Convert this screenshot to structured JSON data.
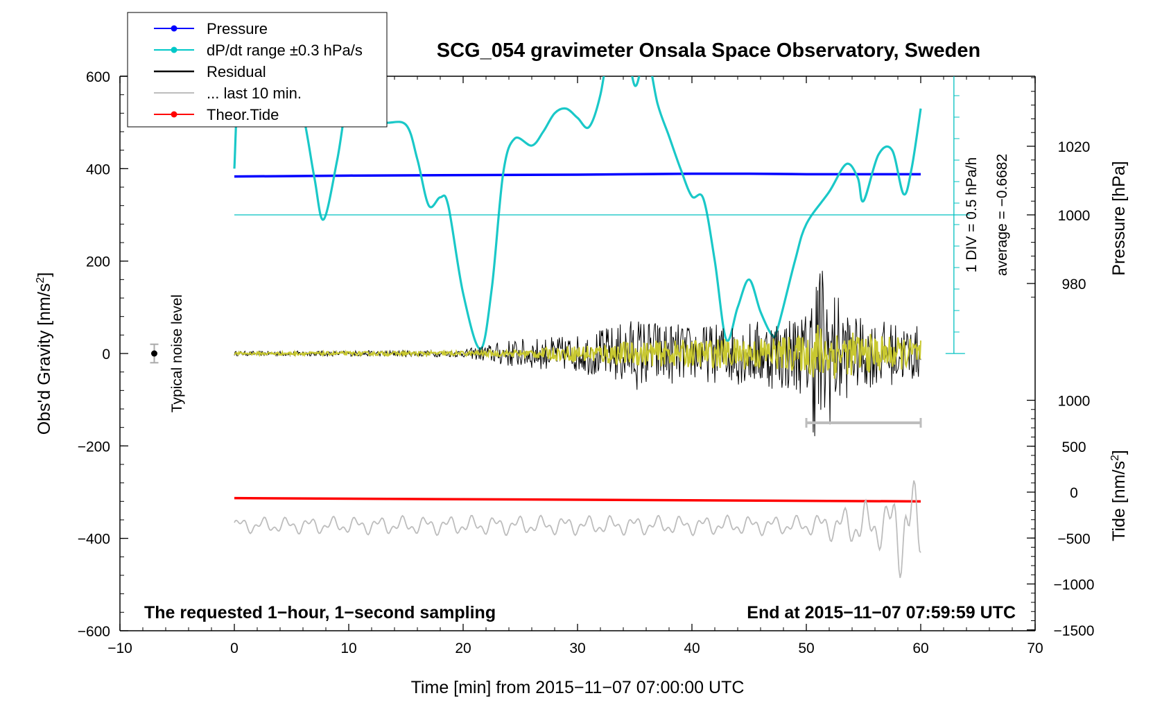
{
  "chart_data": {
    "type": "line",
    "title": "SCG_054 gravimeter Onsala Space Observatory, Sweden",
    "xlabel": "Time [min] from 2015−11−07 07:00:00 UTC",
    "ylabel_left": "Obs'd Gravity [nm/s",
    "ylabel_left_sup": "2",
    "ylabel_left_end": "]",
    "ylabel_right_pressure": "Pressure [hPa]",
    "ylabel_right_tide": "Tide [nm/s",
    "ylabel_right_tide_sup": "2",
    "ylabel_right_tide_end": "]",
    "x_ticks": [
      -10,
      0,
      10,
      20,
      30,
      40,
      50,
      60,
      70
    ],
    "x_tick_labels": [
      "−10",
      "0",
      "10",
      "20",
      "30",
      "40",
      "50",
      "60",
      "70"
    ],
    "xlim": [
      -10,
      70
    ],
    "ylim": [
      -600,
      600
    ],
    "y_tick_labels": [
      "600",
      "400",
      "200",
      "0",
      "−200",
      "−400",
      "−600"
    ],
    "pressure_ticks": [
      980,
      1000,
      1020
    ],
    "pressure_tick_labels": [
      "980",
      "1000",
      "1020"
    ],
    "tide_ticks": [
      1000,
      500,
      0,
      -500,
      -1000,
      -1500
    ],
    "tide_tick_labels": [
      "1000",
      "500",
      "0",
      "−500",
      "−1000",
      "−1500"
    ],
    "legend": {
      "position": "top-left",
      "entries": [
        {
          "name": "Pressure",
          "color": "#0000ff",
          "marker": true
        },
        {
          "name": "dP/dt range ±0.3 hPa/s",
          "color": "#00c8c8",
          "marker": true
        },
        {
          "name": "Residual",
          "color": "#000000",
          "marker": false
        },
        {
          "name": "... last 10 min.",
          "color": "#bdbdbd",
          "marker": false
        },
        {
          "name": "Theor.Tide",
          "color": "#ff0000",
          "marker": true
        }
      ]
    },
    "annotations": {
      "bottom_left": "The requested 1−hour, 1−second sampling",
      "bottom_right": "End at 2015−11−07 07:59:59 UTC",
      "div_label": "1 DIV = 0.5 hPa/h",
      "average_label": "average = −0.6682",
      "noise_label": "Typical noise level"
    },
    "noise_marker": {
      "x": -7,
      "y": 0,
      "err": 20
    },
    "last10_bar": {
      "x_start": 50,
      "x_end": 60,
      "y": -150
    },
    "series": [
      {
        "name": "Pressure",
        "color": "#0000ff",
        "x": [
          0,
          10,
          20,
          30,
          40,
          45,
          50,
          55,
          60
        ],
        "values": [
          383,
          385,
          386,
          387,
          389,
          389,
          388,
          388,
          388
        ]
      },
      {
        "name": "dP/dt range ±0.3 hPa/s",
        "color": "#00c8c8",
        "x": [
          0,
          0.5,
          2,
          4,
          6,
          7,
          7.8,
          9,
          10,
          11,
          13,
          15,
          16,
          17,
          18,
          18.7,
          20,
          21.5,
          22.5,
          23.5,
          24.5,
          26,
          27,
          28,
          29,
          30,
          31,
          32,
          33,
          34,
          35,
          36,
          37,
          38,
          39,
          40,
          41,
          42,
          43,
          44,
          45,
          46,
          47,
          47.5,
          49,
          50,
          52,
          53.5,
          54.5,
          55,
          56.3,
          57.5,
          58.5,
          59.2,
          60
        ],
        "values": [
          400,
          620,
          760,
          740,
          520,
          380,
          290,
          420,
          560,
          520,
          500,
          495,
          420,
          320,
          338,
          320,
          130,
          10,
          140,
          390,
          465,
          450,
          480,
          520,
          530,
          510,
          490,
          560,
          700,
          720,
          580,
          650,
          540,
          470,
          400,
          340,
          335,
          200,
          30,
          100,
          160,
          90,
          40,
          55,
          200,
          280,
          350,
          410,
          380,
          330,
          430,
          440,
          345,
          400,
          530
        ]
      },
      {
        "name": "Residual",
        "color": "#000000",
        "x_range": [
          0,
          60
        ],
        "envelope": [
          [
            0,
            5
          ],
          [
            10,
            6
          ],
          [
            20,
            8
          ],
          [
            24,
            30
          ],
          [
            30,
            40
          ],
          [
            33,
            60
          ],
          [
            35,
            80
          ],
          [
            40,
            60
          ],
          [
            45,
            70
          ],
          [
            50,
            90
          ],
          [
            51,
            230
          ],
          [
            52,
            160
          ],
          [
            54,
            80
          ],
          [
            60,
            60
          ]
        ]
      },
      {
        "name": "Residual (yellow fit)",
        "color": "#c8c828",
        "x_range": [
          0,
          60
        ],
        "envelope": [
          [
            0,
            3
          ],
          [
            10,
            4
          ],
          [
            20,
            5
          ],
          [
            25,
            8
          ],
          [
            33,
            25
          ],
          [
            40,
            30
          ],
          [
            50,
            40
          ],
          [
            51,
            70
          ],
          [
            53,
            50
          ],
          [
            60,
            30
          ]
        ]
      },
      {
        "name": "Theor.Tide",
        "color": "#ff0000",
        "x": [
          0,
          60
        ],
        "values": [
          -313,
          -320
        ]
      },
      {
        "name": "... last 10 min.",
        "color": "#bdbdbd",
        "x_range": [
          0,
          60
        ],
        "baseline": -372,
        "envelope": [
          [
            0,
            18
          ],
          [
            10,
            20
          ],
          [
            20,
            22
          ],
          [
            30,
            22
          ],
          [
            40,
            22
          ],
          [
            50,
            22
          ],
          [
            53,
            40
          ],
          [
            55,
            55
          ],
          [
            57,
            60
          ],
          [
            58.5,
            130
          ],
          [
            60,
            90
          ]
        ]
      }
    ]
  }
}
